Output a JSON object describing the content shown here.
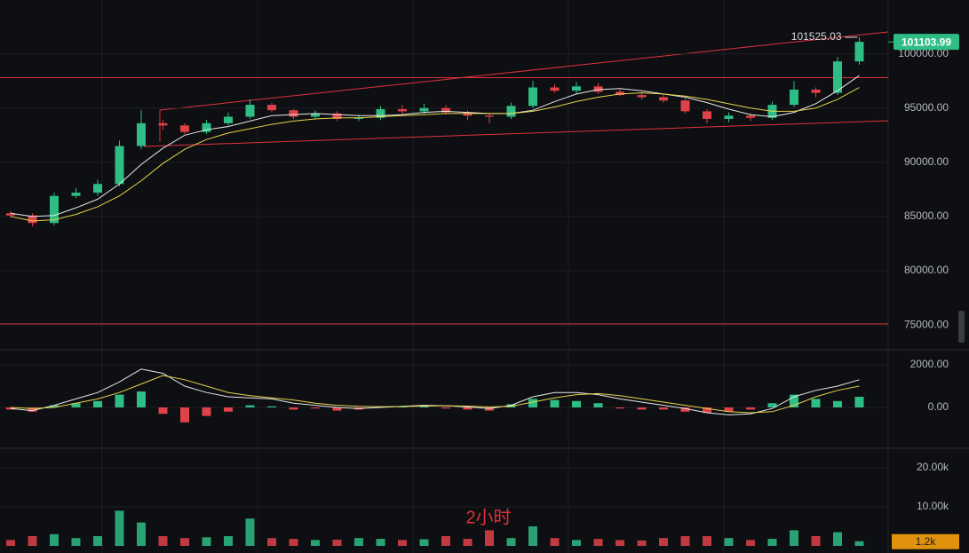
{
  "chart_data": [
    {
      "type": "candlestick",
      "up_color": "#2ebd85",
      "down_color": "#e0424a",
      "open": [
        85300,
        85100,
        84400,
        86900,
        87200,
        88000,
        91500,
        93600,
        93400,
        92800,
        93600,
        94200,
        95300,
        94800,
        94200,
        94500,
        94000,
        94100,
        94900,
        94700,
        95000,
        94600,
        94300,
        94200,
        95200,
        96900,
        96600,
        97000,
        96500,
        96200,
        96000,
        95700,
        94700,
        94000,
        94300,
        94100,
        95300,
        96700,
        96400,
        99300
      ],
      "high": [
        85500,
        85300,
        87200,
        87600,
        88400,
        92000,
        94800,
        93900,
        93600,
        93900,
        94600,
        95800,
        95500,
        94900,
        94800,
        94700,
        94400,
        95200,
        95300,
        95400,
        95300,
        94800,
        94500,
        95500,
        97500,
        97200,
        97400,
        97300,
        96700,
        96500,
        96300,
        95900,
        94900,
        94600,
        94500,
        95600,
        97500,
        96900,
        99700,
        101525.03
      ],
      "low": [
        84900,
        84100,
        84200,
        86700,
        86900,
        87800,
        91200,
        93000,
        92600,
        92600,
        93400,
        94000,
        94600,
        94000,
        94000,
        93800,
        93800,
        93900,
        94400,
        94400,
        94400,
        93900,
        93600,
        94000,
        95000,
        96400,
        96300,
        96300,
        96100,
        95800,
        95500,
        94500,
        93600,
        93700,
        93800,
        93900,
        95100,
        96000,
        96200,
        99000
      ],
      "close": [
        85100,
        84400,
        86900,
        87200,
        88000,
        91500,
        93600,
        93400,
        92800,
        93600,
        94200,
        95300,
        94800,
        94200,
        94500,
        94000,
        94100,
        94900,
        94700,
        95000,
        94600,
        94300,
        94200,
        95200,
        96900,
        96600,
        97000,
        96500,
        96200,
        96000,
        95700,
        94700,
        94000,
        94300,
        94100,
        95300,
        96700,
        96400,
        99300,
        101103.99
      ],
      "series": [
        {
          "color": "#e8e8e8",
          "values": [
            85300,
            85000,
            85100,
            85800,
            86600,
            88000,
            89800,
            91300,
            92500,
            93000,
            93300,
            93800,
            94300,
            94400,
            94500,
            94400,
            94300,
            94300,
            94400,
            94600,
            94700,
            94600,
            94500,
            94500,
            94800,
            95600,
            96300,
            96700,
            96800,
            96600,
            96300,
            96000,
            95500,
            94900,
            94400,
            94200,
            94600,
            95400,
            96600,
            98000
          ]
        },
        {
          "color": "#e6d34a",
          "values": [
            85000,
            84600,
            84700,
            85200,
            85900,
            86900,
            88300,
            89900,
            91200,
            92100,
            92700,
            93100,
            93500,
            93800,
            94000,
            94100,
            94100,
            94200,
            94300,
            94400,
            94500,
            94500,
            94500,
            94500,
            94700,
            95100,
            95600,
            96000,
            96300,
            96400,
            96300,
            96100,
            95800,
            95400,
            95000,
            94700,
            94700,
            95000,
            95800,
            96900
          ]
        }
      ],
      "hlines": [
        97800,
        75100
      ],
      "hline_color": "#e0323c",
      "ylim": [
        72800,
        104800
      ],
      "yticks": [
        {
          "value": 100000,
          "label": "100000.00"
        },
        {
          "value": 95000,
          "label": "95000.00"
        },
        {
          "value": 90000,
          "label": "90000.00"
        },
        {
          "value": 85000,
          "label": "85000.00"
        },
        {
          "value": 80000,
          "label": "80000.00"
        },
        {
          "value": 75000,
          "label": "75000.00"
        }
      ],
      "grid": true
    },
    {
      "type": "macd",
      "histogram": [
        -100,
        -200,
        100,
        200,
        300,
        600,
        750,
        -300,
        -700,
        -400,
        -200,
        100,
        50,
        -100,
        -50,
        -150,
        -100,
        50,
        50,
        100,
        -50,
        -100,
        -150,
        150,
        400,
        350,
        300,
        200,
        -50,
        -100,
        -100,
        -200,
        -250,
        -200,
        -100,
        200,
        600,
        400,
        300,
        500
      ],
      "series": [
        {
          "color": "#e8e8e8",
          "values": [
            -50,
            -150,
            100,
            400,
            700,
            1200,
            1800,
            1600,
            1000,
            700,
            500,
            450,
            400,
            200,
            100,
            0,
            -50,
            0,
            50,
            100,
            80,
            20,
            -50,
            100,
            500,
            700,
            700,
            600,
            400,
            250,
            100,
            -50,
            -250,
            -350,
            -300,
            -50,
            500,
            800,
            1000,
            1300
          ]
        },
        {
          "color": "#e6d34a",
          "values": [
            0,
            -50,
            0,
            200,
            400,
            700,
            1100,
            1500,
            1300,
            1000,
            700,
            550,
            450,
            350,
            200,
            100,
            50,
            30,
            40,
            60,
            80,
            60,
            20,
            50,
            250,
            450,
            600,
            650,
            550,
            400,
            250,
            100,
            -50,
            -200,
            -250,
            -200,
            100,
            500,
            800,
            1000
          ]
        }
      ],
      "ylim": [
        -1917,
        2667
      ],
      "yticks": [
        {
          "value": 2000,
          "label": "2000.00"
        },
        {
          "value": 0,
          "label": "0.00"
        }
      ],
      "grid": true
    },
    {
      "type": "bar",
      "values": [
        1500,
        2500,
        3000,
        2000,
        2500,
        9000,
        6000,
        2500,
        2000,
        2200,
        2500,
        7000,
        2000,
        1800,
        1500,
        1600,
        2000,
        1800,
        1500,
        1700,
        2500,
        1800,
        4000,
        2000,
        5000,
        2000,
        1500,
        1800,
        1500,
        1400,
        2000,
        2500,
        2500,
        2000,
        1500,
        1800,
        4000,
        2500,
        3500,
        1200
      ],
      "last": {
        "value": 1200,
        "label": "1.2k"
      },
      "annotation": "2小时",
      "ylim": [
        0,
        25000
      ],
      "yticks": [
        {
          "value": 20000,
          "label": "20.00k"
        },
        {
          "value": 10000,
          "label": "10.00k"
        }
      ],
      "grid": true
    }
  ]
}
